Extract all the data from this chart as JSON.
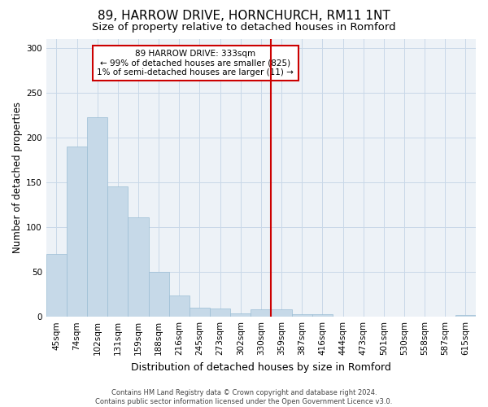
{
  "title": "89, HARROW DRIVE, HORNCHURCH, RM11 1NT",
  "subtitle": "Size of property relative to detached houses in Romford",
  "xlabel": "Distribution of detached houses by size in Romford",
  "ylabel": "Number of detached properties",
  "footer_line1": "Contains HM Land Registry data © Crown copyright and database right 2024.",
  "footer_line2": "Contains public sector information licensed under the Open Government Licence v3.0.",
  "bar_labels": [
    "45sqm",
    "74sqm",
    "102sqm",
    "131sqm",
    "159sqm",
    "188sqm",
    "216sqm",
    "245sqm",
    "273sqm",
    "302sqm",
    "330sqm",
    "359sqm",
    "387sqm",
    "416sqm",
    "444sqm",
    "473sqm",
    "501sqm",
    "530sqm",
    "558sqm",
    "587sqm",
    "615sqm"
  ],
  "bar_values": [
    70,
    190,
    222,
    145,
    111,
    50,
    24,
    10,
    9,
    4,
    8,
    8,
    3,
    3,
    0,
    0,
    0,
    0,
    0,
    0,
    2
  ],
  "bar_color": "#c6d9e8",
  "bar_edgecolor": "#9bbdd4",
  "vline_x": 10.5,
  "vline_color": "#cc0000",
  "annotation_text": "89 HARROW DRIVE: 333sqm\n← 99% of detached houses are smaller (825)\n1% of semi-detached houses are larger (11) →",
  "annotation_box_color": "#cc0000",
  "ylim": [
    0,
    310
  ],
  "yticks": [
    0,
    50,
    100,
    150,
    200,
    250,
    300
  ],
  "grid_color": "#c8d8e8",
  "bg_color": "#edf2f7",
  "title_fontsize": 11,
  "subtitle_fontsize": 9.5,
  "xlabel_fontsize": 9,
  "ylabel_fontsize": 8.5,
  "tick_fontsize": 7.5,
  "annotation_fontsize": 7.5,
  "footer_fontsize": 6
}
